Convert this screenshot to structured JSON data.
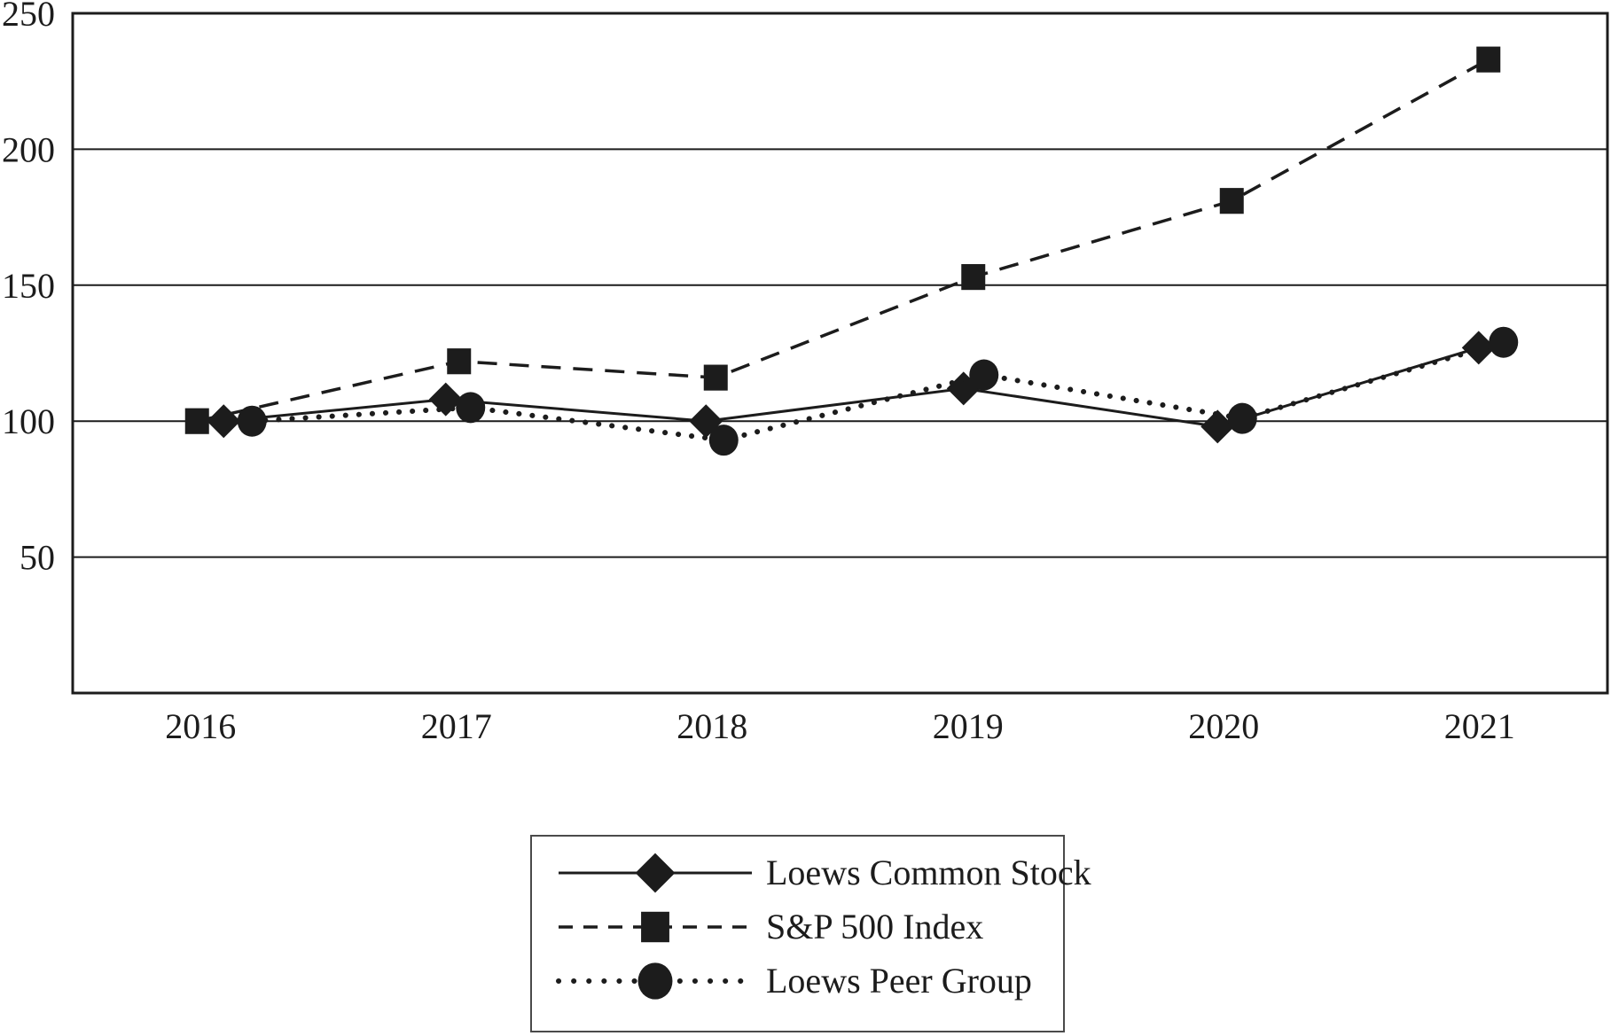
{
  "page": {
    "background_color": "#ffffff",
    "ink_color": "#1c1c1c",
    "legend_border_color": "#4a4a4a"
  },
  "chart_data": {
    "type": "line",
    "title": "",
    "categories": [
      "2016",
      "2017",
      "2018",
      "2019",
      "2020",
      "2021"
    ],
    "series": [
      {
        "name": "Loews Common Stock",
        "marker": "diamond",
        "line_style": "solid",
        "values": [
          100,
          108,
          100,
          112,
          98,
          127
        ]
      },
      {
        "name": "S&P 500 Index",
        "marker": "square",
        "line_style": "dashed",
        "values": [
          100,
          122,
          116,
          153,
          181,
          233
        ]
      },
      {
        "name": "Loews Peer Group",
        "marker": "circle",
        "line_style": "dotted",
        "values": [
          100,
          105,
          93,
          117,
          101,
          129
        ]
      }
    ],
    "ylim": [
      0,
      250
    ],
    "y_ticks": [
      50,
      100,
      150,
      200,
      250
    ],
    "grid": "horizontal",
    "legend_position": "bottom-center"
  }
}
